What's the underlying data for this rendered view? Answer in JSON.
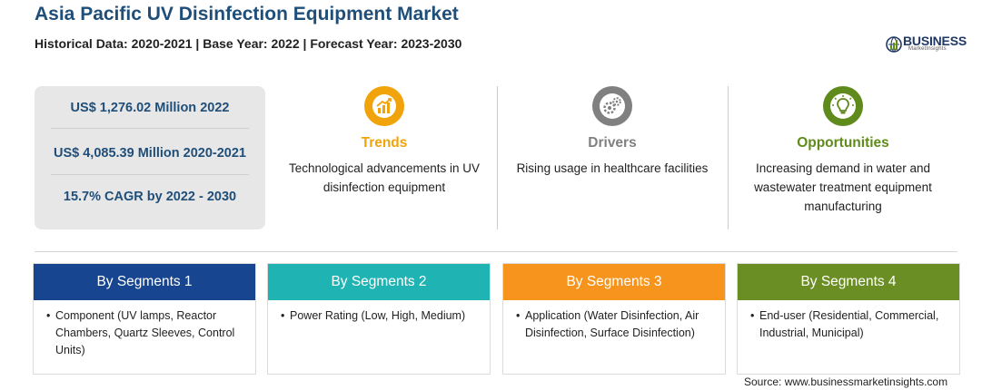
{
  "title": "Asia Pacific UV Disinfection Equipment Market",
  "subtitle": "Historical Data: 2020-2021 | Base Year: 2022 | Forecast Year: 2023-2030",
  "logo": {
    "name": "BUSINESS",
    "sub": "MarketInsights"
  },
  "stats": [
    "US$ 1,276.02 Million 2022",
    "US$ 4,085.39 Million 2020-2021",
    "15.7% CAGR by 2022 - 2030"
  ],
  "features": [
    {
      "label": "Trends",
      "desc": "Technological advancements in UV disinfection equipment",
      "color": "#f0a30a",
      "icon": "trend-chart-icon"
    },
    {
      "label": "Drivers",
      "desc": "Rising usage in healthcare facilities",
      "color": "#808080",
      "icon": "gears-icon"
    },
    {
      "label": "Opportunities",
      "desc": "Increasing demand in water and wastewater treatment equipment manufacturing",
      "color": "#5f8a1c",
      "icon": "lightbulb-icon"
    }
  ],
  "segments": [
    {
      "title": "By Segments 1",
      "color": "#17458f",
      "item": "Component (UV lamps, Reactor Chambers, Quartz Sleeves, Control Units)"
    },
    {
      "title": "By Segments 2",
      "color": "#1fb3b3",
      "item": "Power Rating (Low, High, Medium)"
    },
    {
      "title": "By Segments 3",
      "color": "#f7941d",
      "item": "Application (Water Disinfection, Air Disinfection, Surface Disinfection)"
    },
    {
      "title": "By Segments 4",
      "color": "#6a8e23",
      "item": "End-user (Residential, Commercial, Industrial, Municipal)"
    }
  ],
  "source": "Source: www.businessmarketinsights.com"
}
